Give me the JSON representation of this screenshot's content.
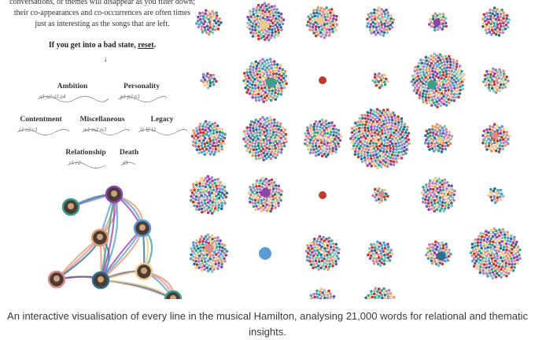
{
  "intro": {
    "line1": "conversations, or themes will disappear as you filter down;",
    "line2": "their co-appearances and co-occurrences are often times",
    "line3": "just as interesting as the songs that are left.",
    "reset_prefix": "If you get into a bad state, ",
    "reset_link": "reset",
    "reset_suffix": ".",
    "arrow": "↓"
  },
  "themes": [
    {
      "label": "Ambition",
      "subs": "a1  a2  a3  a4"
    },
    {
      "label": "Personality",
      "subs": "p1  p2  p3"
    },
    {
      "label": "Contentment",
      "subs": "c1  c2  c3"
    },
    {
      "label": "Miscellaneous",
      "subs": "m1  m2  m3"
    },
    {
      "label": "Legacy",
      "subs": "l1  l2  l3"
    },
    {
      "label": "Relationship",
      "subs": "r1  r2"
    },
    {
      "label": "Death",
      "subs": "d1"
    }
  ],
  "palette": [
    "#2b6c8f",
    "#3aa08c",
    "#e29a6a",
    "#d88c8c",
    "#8e44ad",
    "#f0c98c",
    "#5b9bd5",
    "#c0392b",
    "#7fc6b6",
    "#b57cc7"
  ],
  "caption": "An interactive visualisation of every line in the musical Hamilton, analysing 21,000 words for relational and thematic insights."
}
